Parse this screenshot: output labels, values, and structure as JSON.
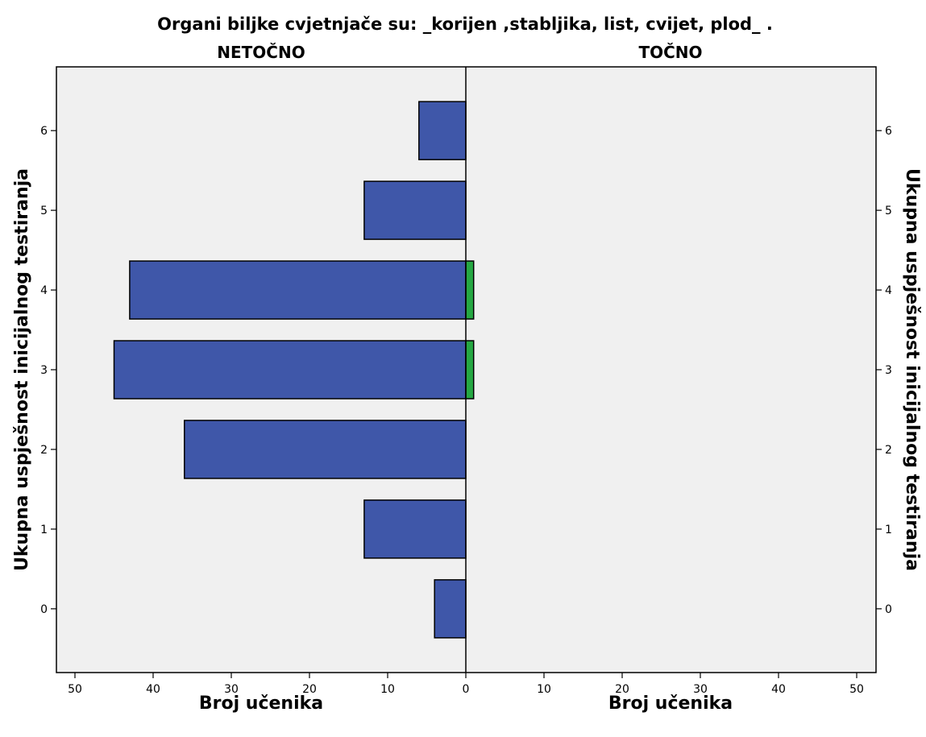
{
  "chart_data": {
    "type": "bar",
    "orientation": "horizontal-population-pyramid",
    "title": "Organi biljke cvjetnjače su: _korijen ,stabljika, list, cvijet, plod_ .",
    "categories": [
      "0",
      "1",
      "2",
      "3",
      "4",
      "5",
      "6"
    ],
    "panels": [
      "NETOČNO",
      "TOČNO"
    ],
    "series": [
      {
        "name": "NETOČNO",
        "color": "#3f57a9",
        "values": [
          4,
          13,
          36,
          45,
          43,
          13,
          6
        ]
      },
      {
        "name": "TOČNO",
        "color": "#26a843",
        "values": [
          0,
          0,
          0,
          1,
          1,
          0,
          0
        ]
      }
    ],
    "xlabel": "Broj učenika",
    "ylabel": "Ukupna uspješnost inicijalnog testiranja",
    "xlim": [
      0,
      50
    ],
    "x_ticks": [
      0,
      10,
      20,
      30,
      40,
      50
    ],
    "ylim": [
      -0.8,
      6.8
    ],
    "grid": false,
    "plot_background": "#f0f0f0"
  }
}
